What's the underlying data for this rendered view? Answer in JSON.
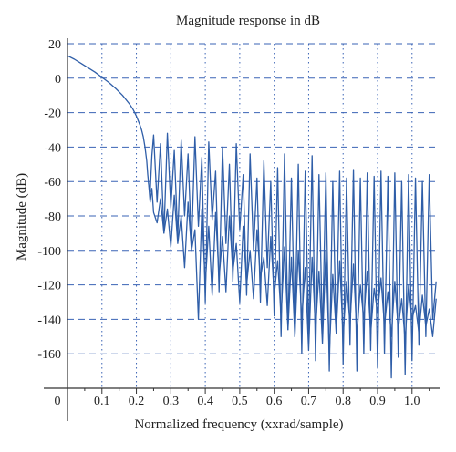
{
  "chart_data": {
    "type": "line",
    "title": "Magnitude response in dB",
    "xlabel": "Normalized frequency (xxrad/sample)",
    "ylabel": "Magnitude (dB)",
    "xlim": [
      0,
      1.08
    ],
    "ylim": [
      -180,
      20
    ],
    "x_ticks": [
      "0",
      "0.1",
      "0.2",
      "0.3",
      "0.4",
      "0.5",
      "0.6",
      "0.7",
      "0.8",
      "0.9",
      "1.0"
    ],
    "x_tick_values": [
      0,
      0.1,
      0.2,
      0.3,
      0.4,
      0.5,
      0.6,
      0.7,
      0.8,
      0.9,
      1.0
    ],
    "y_ticks": [
      "20",
      "0",
      "-20",
      "-40",
      "-60",
      "-80",
      "-100",
      "-120",
      "-140",
      "-160"
    ],
    "y_tick_values": [
      20,
      0,
      -20,
      -40,
      -60,
      -80,
      -100,
      -120,
      -140,
      -160
    ],
    "grid": {
      "horizontal": "dashed",
      "vertical": "dotted"
    },
    "colors": {
      "line": "#2f5ea8",
      "grid": "#3a63b5",
      "axis": "#333333"
    },
    "series": [
      {
        "x": [
          0,
          0.02,
          0.04,
          0.06,
          0.08,
          0.1,
          0.12,
          0.14,
          0.16,
          0.18,
          0.19,
          0.2,
          0.21,
          0.215,
          0.22,
          0.225,
          0.23,
          0.233,
          0.236,
          0.24,
          0.245,
          0.25,
          0.26,
          0.27,
          0.28,
          0.29,
          0.3,
          0.31,
          0.32,
          0.33,
          0.34,
          0.35,
          0.36,
          0.37,
          0.38,
          0.39,
          0.4,
          0.41,
          0.42,
          0.43,
          0.44,
          0.45,
          0.46,
          0.47,
          0.48,
          0.49,
          0.5,
          0.51,
          0.52,
          0.53,
          0.54,
          0.55,
          0.56,
          0.57,
          0.58,
          0.59,
          0.6,
          0.61,
          0.62,
          0.63,
          0.64,
          0.65,
          0.66,
          0.67,
          0.68,
          0.69,
          0.7,
          0.71,
          0.72,
          0.73,
          0.74,
          0.75,
          0.76,
          0.77,
          0.78,
          0.79,
          0.8,
          0.81,
          0.82,
          0.83,
          0.84,
          0.85,
          0.86,
          0.87,
          0.88,
          0.89,
          0.9,
          0.91,
          0.92,
          0.93,
          0.94,
          0.95,
          0.96,
          0.97,
          0.98,
          0.99,
          1.0,
          1.01,
          1.02,
          1.03,
          1.04,
          1.05,
          1.06,
          1.07
        ],
        "y": [
          13,
          11,
          8.5,
          6,
          3.5,
          0.5,
          -2.5,
          -6,
          -10,
          -15,
          -18,
          -22,
          -27,
          -30,
          -34,
          -40,
          -48,
          -56,
          -62,
          -66,
          -45,
          -33,
          -72,
          -38,
          -90,
          -32,
          -75,
          -42,
          -92,
          -36,
          -80,
          -44,
          -98,
          -34,
          -86,
          -46,
          -130,
          -37,
          -82,
          -54,
          -124,
          -40,
          -96,
          -50,
          -118,
          -38,
          -88,
          -56,
          -126,
          -44,
          -100,
          -58,
          -130,
          -48,
          -110,
          -60,
          -138,
          -52,
          -150,
          -44,
          -146,
          -58,
          -150,
          -50,
          -160,
          -54,
          -150,
          -45,
          -164,
          -56,
          -150,
          -55,
          -170,
          -60,
          -148,
          -54,
          -166,
          -58,
          -155,
          -53,
          -170,
          -58,
          -160,
          -55,
          -158,
          -57,
          -168,
          -54,
          -160,
          -57,
          -174,
          -55,
          -162,
          -60,
          -172,
          -56,
          -164,
          -58,
          -155,
          -60,
          -150,
          -56,
          -140,
          -118
        ]
      },
      {
        "x": [
          0.235,
          0.24,
          0.245,
          0.25,
          0.26,
          0.27,
          0.28,
          0.29,
          0.3,
          0.31,
          0.32,
          0.33,
          0.34,
          0.35,
          0.36,
          0.37,
          0.38,
          0.39,
          0.4,
          0.41,
          0.42,
          0.43,
          0.44,
          0.45,
          0.46,
          0.47,
          0.48,
          0.49,
          0.5,
          0.51,
          0.52,
          0.53,
          0.54,
          0.55,
          0.56,
          0.57,
          0.58,
          0.59,
          0.6,
          0.61,
          0.62,
          0.63,
          0.64,
          0.65,
          0.66,
          0.67,
          0.68,
          0.69,
          0.7,
          0.71,
          0.72,
          0.73,
          0.74,
          0.75,
          0.76,
          0.77,
          0.78,
          0.79,
          0.8,
          0.81,
          0.82,
          0.83,
          0.84,
          0.85,
          0.86,
          0.87,
          0.88,
          0.89,
          0.9,
          0.91,
          0.92,
          0.93,
          0.94,
          0.95,
          0.96,
          0.97,
          0.98,
          0.99,
          1.0,
          1.01,
          1.02,
          1.03,
          1.04,
          1.05,
          1.06,
          1.07
        ],
        "y": [
          -60,
          -72,
          -64,
          -78,
          -84,
          -70,
          -90,
          -76,
          -98,
          -68,
          -96,
          -80,
          -110,
          -72,
          -100,
          -88,
          -140,
          -76,
          -120,
          -86,
          -126,
          -78,
          -116,
          -92,
          -124,
          -80,
          -112,
          -96,
          -130,
          -86,
          -120,
          -100,
          -128,
          -88,
          -116,
          -104,
          -132,
          -92,
          -126,
          -106,
          -138,
          -98,
          -146,
          -104,
          -150,
          -100,
          -140,
          -110,
          -158,
          -104,
          -146,
          -112,
          -154,
          -100,
          -160,
          -114,
          -148,
          -106,
          -150,
          -118,
          -142,
          -108,
          -150,
          -120,
          -140,
          -112,
          -148,
          -122,
          -136,
          -116,
          -144,
          -124,
          -150,
          -118,
          -146,
          -128,
          -152,
          -120,
          -140,
          -132,
          -148,
          -126,
          -144,
          -134,
          -150,
          -128
        ]
      }
    ]
  }
}
